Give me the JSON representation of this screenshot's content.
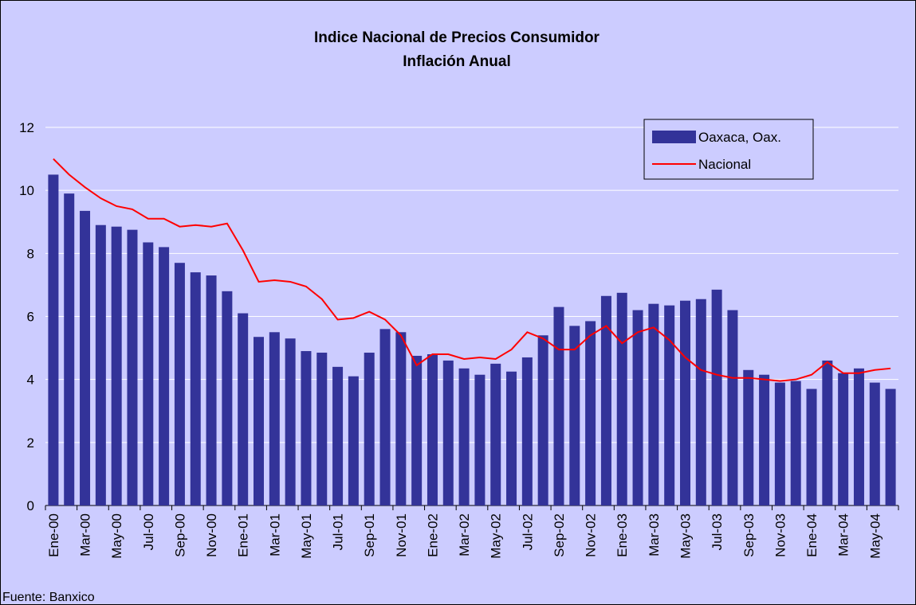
{
  "chart_data": {
    "type": "bar",
    "title": "Indice Nacional de Precios Consumidor",
    "subtitle": "Inflación Anual",
    "source": "Fuente: Banxico",
    "categories": [
      "Ene-00",
      null,
      "Mar-00",
      null,
      "May-00",
      null,
      "Jul-00",
      null,
      "Sep-00",
      null,
      "Nov-00",
      null,
      "Ene-01",
      null,
      "Mar-01",
      null,
      "May-01",
      null,
      "Jul-01",
      null,
      "Sep-01",
      null,
      "Nov-01",
      null,
      "Ene-02",
      null,
      "Mar-02",
      null,
      "May-02",
      null,
      "Jul-02",
      null,
      "Sep-02",
      null,
      "Nov-02",
      null,
      "Ene-03",
      null,
      "Mar-03",
      null,
      "May-03",
      null,
      "Jul-03",
      null,
      "Sep-03",
      null,
      "Nov-03",
      null,
      "Ene-04",
      null,
      "Mar-04",
      null,
      "May-04",
      null
    ],
    "series": [
      {
        "name": "Oaxaca, Oax.",
        "type": "bar",
        "color": "#333399",
        "values": [
          10.5,
          9.9,
          9.35,
          8.9,
          8.85,
          8.75,
          8.35,
          8.2,
          7.7,
          7.4,
          7.3,
          6.8,
          6.1,
          5.35,
          5.5,
          5.3,
          4.9,
          4.85,
          4.4,
          4.1,
          4.85,
          5.6,
          5.5,
          4.75,
          4.8,
          4.6,
          4.35,
          4.15,
          4.5,
          4.25,
          4.7,
          5.4,
          6.3,
          5.7,
          5.85,
          6.65,
          6.75,
          6.2,
          6.4,
          6.35,
          6.5,
          6.55,
          6.85,
          6.2,
          4.3,
          4.15,
          3.9,
          3.95,
          3.7,
          4.6,
          4.2,
          4.35,
          3.9,
          3.7
        ]
      },
      {
        "name": "Nacional",
        "type": "line",
        "color": "#ff0000",
        "values": [
          11.0,
          10.5,
          10.1,
          9.75,
          9.5,
          9.4,
          9.1,
          9.1,
          8.85,
          8.9,
          8.85,
          8.95,
          8.1,
          7.1,
          7.15,
          7.1,
          6.95,
          6.55,
          5.9,
          5.95,
          6.15,
          5.9,
          5.4,
          4.45,
          4.8,
          4.8,
          4.65,
          4.7,
          4.65,
          4.95,
          5.5,
          5.3,
          4.95,
          4.95,
          5.4,
          5.7,
          5.15,
          5.5,
          5.65,
          5.25,
          4.7,
          4.3,
          4.15,
          4.05,
          4.05,
          4.0,
          3.95,
          4.0,
          4.15,
          4.55,
          4.2,
          4.2,
          4.3,
          4.35
        ]
      }
    ],
    "ylim": [
      0,
      12
    ],
    "yticks": [
      0,
      2,
      4,
      6,
      8,
      10,
      12
    ],
    "grid": true,
    "legend": "upper right"
  }
}
